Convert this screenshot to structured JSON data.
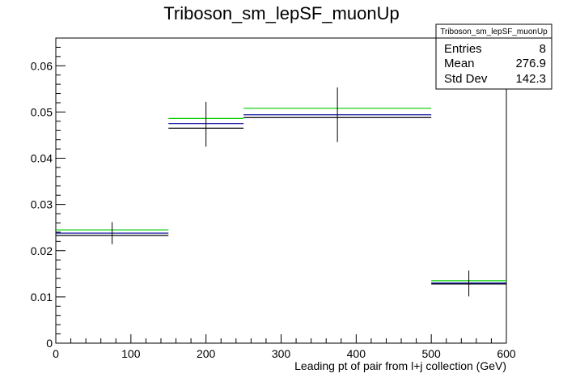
{
  "chart_data": {
    "type": "histogram",
    "title": "Triboson_sm_lepSF_muonUp",
    "xlabel": "Leading pt of pair from l+j collection (GeV)",
    "ylabel": "",
    "xlim": [
      0,
      600
    ],
    "ylim": [
      0,
      0.066
    ],
    "x_ticks": [
      0,
      100,
      200,
      300,
      400,
      500,
      600
    ],
    "y_ticks": [
      0,
      0.01,
      0.02,
      0.03,
      0.04,
      0.05,
      0.06
    ],
    "x_tick_labels": [
      "0",
      "100",
      "200",
      "300",
      "400",
      "500",
      "600"
    ],
    "y_tick_labels": [
      "0",
      "0.01",
      "0.02",
      "0.03",
      "0.04",
      "0.05",
      "0.06"
    ],
    "grid": false,
    "bins": [
      {
        "x_low": 0,
        "x_high": 150,
        "x_center": 75
      },
      {
        "x_low": 150,
        "x_high": 250,
        "x_center": 200
      },
      {
        "x_low": 250,
        "x_high": 500,
        "x_center": 375
      },
      {
        "x_low": 500,
        "x_high": 600,
        "x_center": 550
      }
    ],
    "series": [
      {
        "color": "#00cc00",
        "values": [
          0.0245,
          0.0486,
          0.0508,
          0.0135
        ]
      },
      {
        "color": "#000000",
        "values": [
          0.0233,
          0.0465,
          0.0488,
          0.0128
        ]
      },
      {
        "color": "#000099",
        "values": [
          0.0238,
          0.0475,
          0.0494,
          0.013
        ]
      }
    ],
    "error_bars": {
      "color": "#000000",
      "x": [
        75,
        200,
        375,
        550
      ],
      "y": [
        0.0238,
        0.0475,
        0.0494,
        0.013
      ],
      "y_low": [
        0.0214,
        0.0425,
        0.0435,
        0.0101
      ],
      "y_high": [
        0.0262,
        0.0522,
        0.0553,
        0.0157
      ]
    },
    "stats_box": {
      "title": "Triboson_sm_lepSF_muonUp",
      "placement": "top-right",
      "rows": [
        {
          "label": "Entries",
          "value": "8"
        },
        {
          "label": "Mean",
          "value": "276.9"
        },
        {
          "label": "Std Dev",
          "value": "142.3"
        }
      ]
    }
  }
}
